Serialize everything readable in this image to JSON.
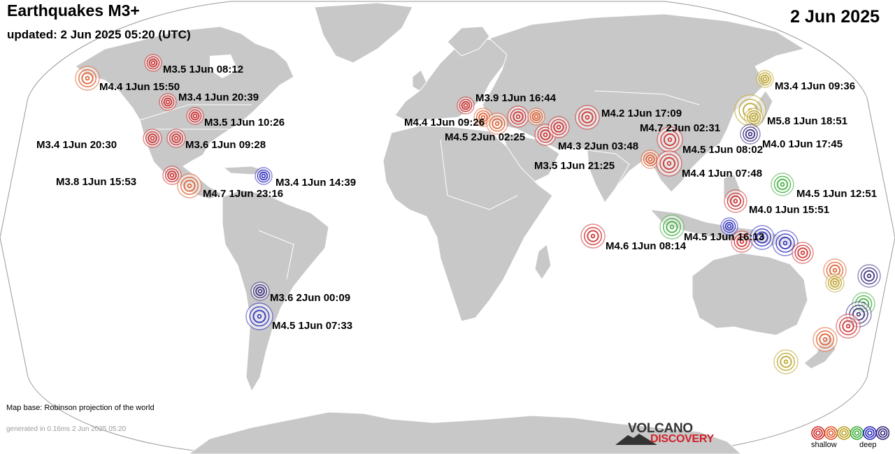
{
  "header": {
    "title": "Earthquakes M3+",
    "updated": "updated:  2 Jun 2025 05:20 (UTC)",
    "date": "2 Jun 2025"
  },
  "footer": {
    "map_base": "Map base: Robinson projection of the world",
    "generated": "generated in 0.16ms  2 Jun 2025 05:20"
  },
  "logo": {
    "line1": "VOLCANO",
    "line2": "DISCOVERY"
  },
  "legend": {
    "shallow": "shallow",
    "deep": "deep",
    "colors": [
      "#cc2222",
      "#dd5522",
      "#b8a020",
      "#33aa33",
      "#2222bb",
      "#332277"
    ]
  },
  "colors": {
    "ocean": "#ffffff",
    "land": "#c8c8c8",
    "border": "#ffffff",
    "outline": "#999999"
  },
  "quake_labels": [
    "M3.5  1Jun 08:12",
    "M4.4  1Jun 15:50",
    "M3.4  1Jun 20:39",
    "M3.5  1Jun 10:26",
    "M3.4  1Jun 20:30",
    "M3.6  1Jun 09:28",
    "M3.8  1Jun 15:53",
    "M4.7  1Jun 23:16",
    "M3.4  1Jun 14:39",
    "M3.6  2Jun 00:09",
    "M4.5  1Jun 07:33",
    "M3.9  1Jun 16:44",
    "M4.4  1Jun 09:26",
    "M4.5  2Jun 02:25",
    "M4.2  1Jun 17:09",
    "M4.7  2Jun 02:31",
    "M4.3  2Jun 03:48",
    "M4.5  1Jun 08:02",
    "M3.5  1Jun 21:25",
    "M4.4  1Jun 07:48",
    "M3.4  1Jun 09:36",
    "M5.8  1Jun 18:51",
    "M4.0  1Jun 17:45",
    "M4.5  1Jun 12:51",
    "M4.0  1Jun 15:51",
    "M4.6  1Jun 08:14",
    "M4.5  1Jun 16:13"
  ]
}
